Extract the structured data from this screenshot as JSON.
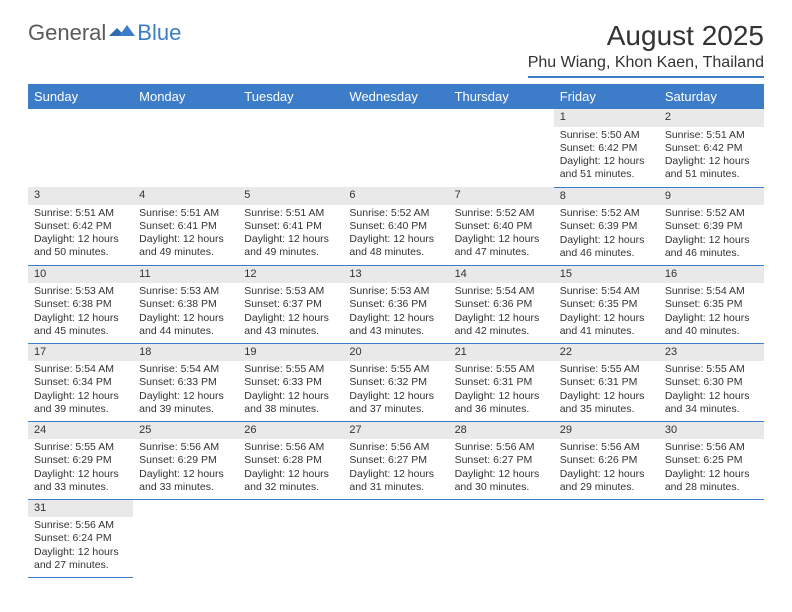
{
  "logo": {
    "part1": "General",
    "part2": "Blue"
  },
  "title": "August 2025",
  "location": "Phu Wiang, Khon Kaen, Thailand",
  "colors": {
    "accent": "#3d7cc9",
    "daynum_bg": "#e9e9e9",
    "text": "#333333",
    "logo_gray": "#5a5a5a"
  },
  "weekdays": [
    "Sunday",
    "Monday",
    "Tuesday",
    "Wednesday",
    "Thursday",
    "Friday",
    "Saturday"
  ],
  "weeks": [
    [
      {
        "blank": true
      },
      {
        "blank": true
      },
      {
        "blank": true
      },
      {
        "blank": true
      },
      {
        "blank": true
      },
      {
        "day": "1",
        "sunrise": "5:50 AM",
        "sunset": "6:42 PM",
        "daylight": "12 hours and 51 minutes."
      },
      {
        "day": "2",
        "sunrise": "5:51 AM",
        "sunset": "6:42 PM",
        "daylight": "12 hours and 51 minutes."
      }
    ],
    [
      {
        "day": "3",
        "sunrise": "5:51 AM",
        "sunset": "6:42 PM",
        "daylight": "12 hours and 50 minutes."
      },
      {
        "day": "4",
        "sunrise": "5:51 AM",
        "sunset": "6:41 PM",
        "daylight": "12 hours and 49 minutes."
      },
      {
        "day": "5",
        "sunrise": "5:51 AM",
        "sunset": "6:41 PM",
        "daylight": "12 hours and 49 minutes."
      },
      {
        "day": "6",
        "sunrise": "5:52 AM",
        "sunset": "6:40 PM",
        "daylight": "12 hours and 48 minutes."
      },
      {
        "day": "7",
        "sunrise": "5:52 AM",
        "sunset": "6:40 PM",
        "daylight": "12 hours and 47 minutes."
      },
      {
        "day": "8",
        "sunrise": "5:52 AM",
        "sunset": "6:39 PM",
        "daylight": "12 hours and 46 minutes."
      },
      {
        "day": "9",
        "sunrise": "5:52 AM",
        "sunset": "6:39 PM",
        "daylight": "12 hours and 46 minutes."
      }
    ],
    [
      {
        "day": "10",
        "sunrise": "5:53 AM",
        "sunset": "6:38 PM",
        "daylight": "12 hours and 45 minutes."
      },
      {
        "day": "11",
        "sunrise": "5:53 AM",
        "sunset": "6:38 PM",
        "daylight": "12 hours and 44 minutes."
      },
      {
        "day": "12",
        "sunrise": "5:53 AM",
        "sunset": "6:37 PM",
        "daylight": "12 hours and 43 minutes."
      },
      {
        "day": "13",
        "sunrise": "5:53 AM",
        "sunset": "6:36 PM",
        "daylight": "12 hours and 43 minutes."
      },
      {
        "day": "14",
        "sunrise": "5:54 AM",
        "sunset": "6:36 PM",
        "daylight": "12 hours and 42 minutes."
      },
      {
        "day": "15",
        "sunrise": "5:54 AM",
        "sunset": "6:35 PM",
        "daylight": "12 hours and 41 minutes."
      },
      {
        "day": "16",
        "sunrise": "5:54 AM",
        "sunset": "6:35 PM",
        "daylight": "12 hours and 40 minutes."
      }
    ],
    [
      {
        "day": "17",
        "sunrise": "5:54 AM",
        "sunset": "6:34 PM",
        "daylight": "12 hours and 39 minutes."
      },
      {
        "day": "18",
        "sunrise": "5:54 AM",
        "sunset": "6:33 PM",
        "daylight": "12 hours and 39 minutes."
      },
      {
        "day": "19",
        "sunrise": "5:55 AM",
        "sunset": "6:33 PM",
        "daylight": "12 hours and 38 minutes."
      },
      {
        "day": "20",
        "sunrise": "5:55 AM",
        "sunset": "6:32 PM",
        "daylight": "12 hours and 37 minutes."
      },
      {
        "day": "21",
        "sunrise": "5:55 AM",
        "sunset": "6:31 PM",
        "daylight": "12 hours and 36 minutes."
      },
      {
        "day": "22",
        "sunrise": "5:55 AM",
        "sunset": "6:31 PM",
        "daylight": "12 hours and 35 minutes."
      },
      {
        "day": "23",
        "sunrise": "5:55 AM",
        "sunset": "6:30 PM",
        "daylight": "12 hours and 34 minutes."
      }
    ],
    [
      {
        "day": "24",
        "sunrise": "5:55 AM",
        "sunset": "6:29 PM",
        "daylight": "12 hours and 33 minutes."
      },
      {
        "day": "25",
        "sunrise": "5:56 AM",
        "sunset": "6:29 PM",
        "daylight": "12 hours and 33 minutes."
      },
      {
        "day": "26",
        "sunrise": "5:56 AM",
        "sunset": "6:28 PM",
        "daylight": "12 hours and 32 minutes."
      },
      {
        "day": "27",
        "sunrise": "5:56 AM",
        "sunset": "6:27 PM",
        "daylight": "12 hours and 31 minutes."
      },
      {
        "day": "28",
        "sunrise": "5:56 AM",
        "sunset": "6:27 PM",
        "daylight": "12 hours and 30 minutes."
      },
      {
        "day": "29",
        "sunrise": "5:56 AM",
        "sunset": "6:26 PM",
        "daylight": "12 hours and 29 minutes."
      },
      {
        "day": "30",
        "sunrise": "5:56 AM",
        "sunset": "6:25 PM",
        "daylight": "12 hours and 28 minutes."
      }
    ],
    [
      {
        "day": "31",
        "sunrise": "5:56 AM",
        "sunset": "6:24 PM",
        "daylight": "12 hours and 27 minutes."
      },
      {
        "blank": true
      },
      {
        "blank": true
      },
      {
        "blank": true
      },
      {
        "blank": true
      },
      {
        "blank": true
      },
      {
        "blank": true
      }
    ]
  ],
  "labels": {
    "sunrise": "Sunrise: ",
    "sunset": "Sunset: ",
    "daylight": "Daylight: "
  }
}
